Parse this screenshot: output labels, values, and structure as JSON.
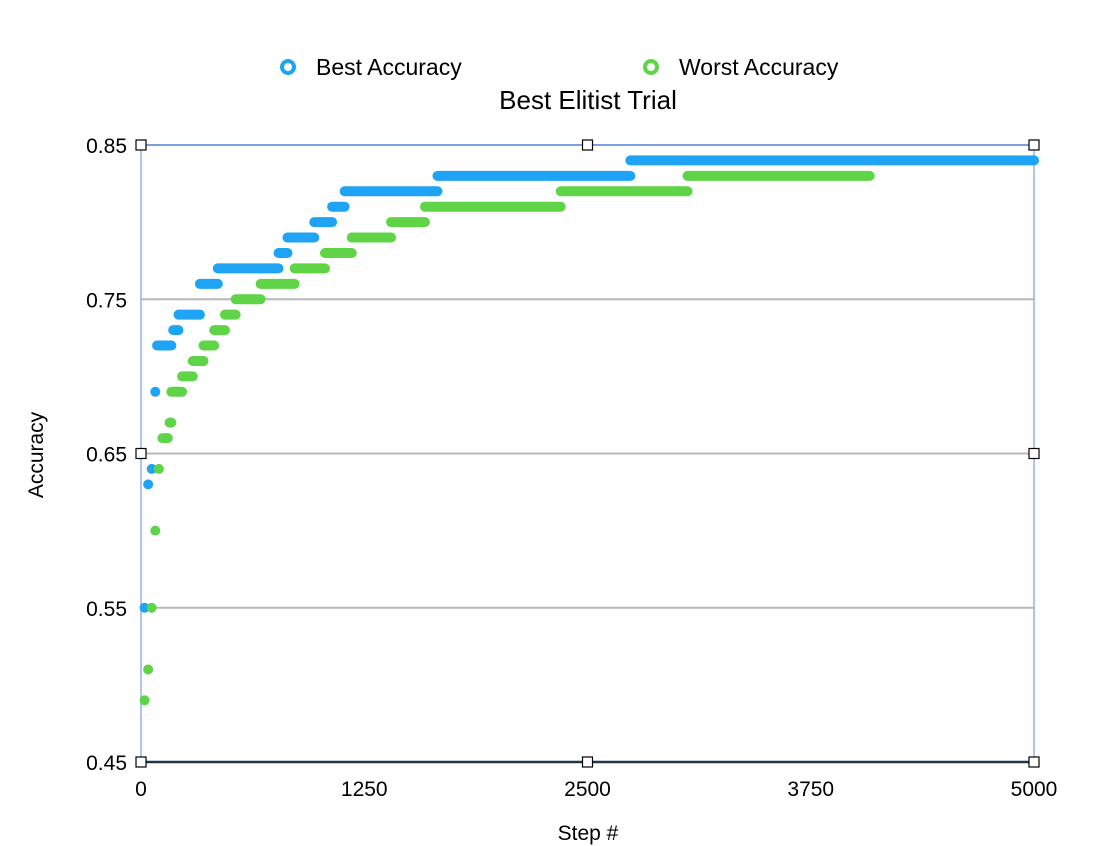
{
  "chart_data": {
    "type": "scatter",
    "title": "Best Elitist Trial",
    "xlabel": "Step #",
    "ylabel": "Accuracy",
    "xlim": [
      0,
      5000
    ],
    "ylim": [
      0.45,
      0.85
    ],
    "xticks": [
      0,
      1250,
      2500,
      3750,
      5000
    ],
    "xtick_labels": [
      "0",
      "1250",
      "2500",
      "3750",
      "5000"
    ],
    "yticks": [
      0.45,
      0.55,
      0.65,
      0.75,
      0.85
    ],
    "ytick_labels": [
      "0.45",
      "0.55",
      "0.65",
      "0.75",
      "0.85"
    ],
    "grid": "horizontal",
    "legend_position": "top",
    "series": [
      {
        "name": "Best Accuracy",
        "color": "#1fa3f5",
        "segments": [
          [
            20,
            20,
            0.55
          ],
          [
            40,
            40,
            0.63
          ],
          [
            60,
            60,
            0.64
          ],
          [
            80,
            80,
            0.69
          ],
          [
            90,
            170,
            0.72
          ],
          [
            180,
            210,
            0.73
          ],
          [
            210,
            330,
            0.74
          ],
          [
            330,
            430,
            0.76
          ],
          [
            430,
            770,
            0.77
          ],
          [
            770,
            820,
            0.78
          ],
          [
            820,
            970,
            0.79
          ],
          [
            970,
            1070,
            0.8
          ],
          [
            1070,
            1140,
            0.81
          ],
          [
            1140,
            1660,
            0.82
          ],
          [
            1660,
            2740,
            0.83
          ],
          [
            2740,
            5000,
            0.84
          ]
        ]
      },
      {
        "name": "Worst Accuracy",
        "color": "#5fd446",
        "segments": [
          [
            20,
            20,
            0.49
          ],
          [
            40,
            40,
            0.51
          ],
          [
            60,
            60,
            0.55
          ],
          [
            80,
            80,
            0.6
          ],
          [
            100,
            100,
            0.64
          ],
          [
            120,
            150,
            0.66
          ],
          [
            160,
            170,
            0.67
          ],
          [
            170,
            230,
            0.69
          ],
          [
            230,
            290,
            0.7
          ],
          [
            290,
            350,
            0.71
          ],
          [
            350,
            410,
            0.72
          ],
          [
            410,
            470,
            0.73
          ],
          [
            470,
            530,
            0.74
          ],
          [
            530,
            670,
            0.75
          ],
          [
            670,
            860,
            0.76
          ],
          [
            860,
            1030,
            0.77
          ],
          [
            1030,
            1180,
            0.78
          ],
          [
            1180,
            1400,
            0.79
          ],
          [
            1400,
            1590,
            0.8
          ],
          [
            1590,
            2350,
            0.81
          ],
          [
            2350,
            3060,
            0.82
          ],
          [
            3060,
            4080,
            0.83
          ]
        ]
      }
    ]
  }
}
